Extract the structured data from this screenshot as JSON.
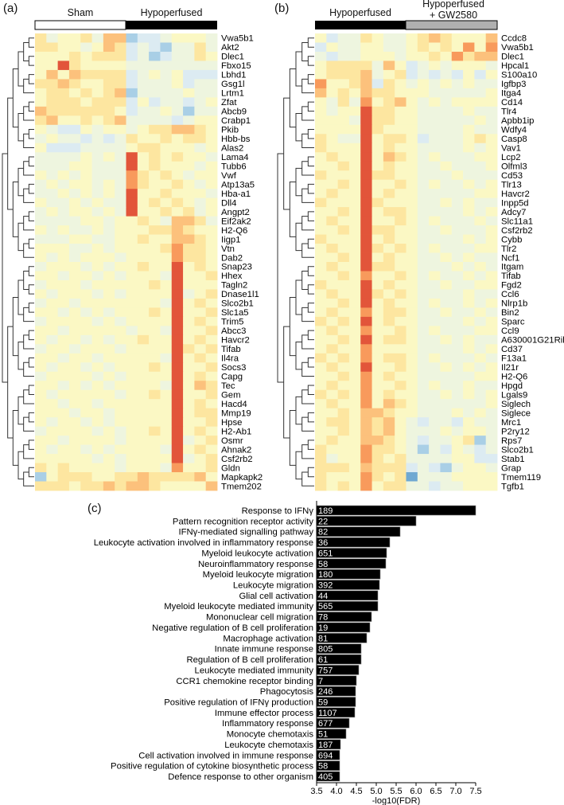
{
  "panels": {
    "a": {
      "label": "(a)",
      "groups": [
        "Sham",
        "Hypoperfused"
      ]
    },
    "b": {
      "label": "(b)",
      "groups": [
        "Hypoperfused",
        "Hypoperfused",
        "+ GW2580"
      ]
    },
    "c": {
      "label": "(c)"
    }
  },
  "colors": {
    "sham": "#ffffff",
    "hypoperfused": "#000000",
    "gw2580": "#b0b0b0",
    "scale": [
      "#6fa8d2",
      "#a9cfe6",
      "#dcebf2",
      "#eef5df",
      "#fbf8c4",
      "#fde6a0",
      "#fcc17c",
      "#f89a5c",
      "#e2553a"
    ]
  },
  "chart_data": [
    {
      "type": "heatmap",
      "title": "(a)",
      "column_groups": [
        {
          "name": "Sham",
          "n": 8
        },
        {
          "name": "Hypoperfused",
          "n": 8
        }
      ],
      "value_encoding": "digit 0-8 per sample, 4 = row mean (z-score ~0), 0 = low (blue), 8 = high (red)",
      "rows": [
        "Vwa5b1",
        "Akt2",
        "Dlec1",
        "Fbxo15",
        "Lbhd1",
        "Gsg1l",
        "Lrtm1",
        "Zfat",
        "Abcb9",
        "Crabp1",
        "Pkib",
        "Hbb-bs",
        "Alas2",
        "Lama4",
        "Tubb6",
        "Vwf",
        "Atp13a5",
        "Hba-a1",
        "Dll4",
        "Angpt2",
        "Eif2ak2",
        "H2-Q6",
        "Iigp1",
        "Vtn",
        "Dab2",
        "Snap23",
        "Hhex",
        "Tagln2",
        "Dnase1l1",
        "Slco2b1",
        "Slc1a5",
        "Trim5",
        "Abcc3",
        "Havcr2",
        "Tifab",
        "Il4ra",
        "Socs3",
        "Capg",
        "Tec",
        "Gem",
        "Hacd4",
        "Mmp19",
        "Hpse",
        "H2-Ab1",
        "Osmr",
        "Ahnak2",
        "Csf2rb2",
        "Gldn",
        "Mapkapk2",
        "Tmem202"
      ],
      "values": [
        "5344536612234443",
        "5544346523213353",
        "4445455523123354",
        "4485444433333333",
        "4646555523434222",
        "5565445523334233",
        "4554545613333433",
        "4555455524233234",
        "6555555423343133",
        "5644545633332344",
        "4322434434556654",
        "3433232354454554",
        "4222333345544434",
        "3333434384545443",
        "3334433384544434",
        "4343433375454344",
        "3434434375445434",
        "3343434384454443",
        "4334343384545434",
        "3434434384454534",
        "3333443445436653",
        "4343343444556544",
        "3334433445446654",
        "4443343444457554",
        "4343444344447554",
        "3444343445448454",
        "4434434344438445",
        "3444344444548444",
        "4344434344448345",
        "3443444444438454",
        "4434343444548445",
        "3444434344448454",
        "4434444434438445",
        "4344343445448454",
        "3443444344448545",
        "4434434444438454",
        "4344343444548445",
        "3444434344448454",
        "4434343444438465",
        "4344444344548445",
        "4434434444448454",
        "4443443444448455",
        "4344343444448445",
        "3444434344548454",
        "4434444344448345",
        "4344343444438454",
        "4444434344448345",
        "5454444344437445",
        "1455544556555564",
        "5554556566544446"
      ]
    },
    {
      "type": "heatmap",
      "title": "(b)",
      "column_groups": [
        {
          "name": "Hypoperfused",
          "n": 8
        },
        {
          "name": "Hypoperfused + GW2580",
          "n": 8
        }
      ],
      "value_encoding": "digit 0-8 per sample, 4 = row mean (z-score ~0), 0 = low (blue), 8 = high (red)",
      "rows": [
        "Ccdc8",
        "Vwa5b1",
        "Dlec1",
        "Hpcal1",
        "S100a10",
        "Igfbp3",
        "Itga4",
        "Cd14",
        "Tlr4",
        "Apbb1ip",
        "Wdfy4",
        "Casp8",
        "Vav1",
        "Lcp2",
        "Olfml3",
        "Cd53",
        "Tlr13",
        "Havcr2",
        "Inpp5d",
        "Adcy7",
        "Slc11a1",
        "Csf2rb2",
        "Cybb",
        "Tlr2",
        "Ncf1",
        "Itgam",
        "Tifab",
        "Fgd2",
        "Ccl6",
        "Nlrp1b",
        "Bin2",
        "Sparc",
        "Ccl9",
        "A630001G21Rik",
        "Cd37",
        "F13a1",
        "Il21r",
        "H2-Q6",
        "Hpgd",
        "Lgals9",
        "Siglech",
        "Siglece",
        "Mrc1",
        "P2ry12",
        "Rps7",
        "Slco2b1",
        "Stab1",
        "Grap",
        "Tmem119",
        "Tgfb1"
      ],
      "values": [
        "4233543345654446",
        "2433443345454747",
        "3233444344547566",
        "4555536423434443",
        "4555634523232424",
        "7445625434343433",
        "6454655444333334",
        "4353745643434444",
        "4344855443333433",
        "4443855443333343",
        "4444854443333433",
        "5433845542333454",
        "5444845443333434",
        "4544846543433344",
        "4454845443343334",
        "5444855443334333",
        "4454844543433434",
        "4544845443333344",
        "5444854443343433",
        "4454845543333434",
        "4544844543433343",
        "4454855443343334",
        "5444845443333434",
        "4544854543433344",
        "4454845443343433",
        "4544855443334343",
        "4454744543433434",
        "5444845443343344",
        "4544854543333433",
        "4454845443433434",
        "4544745543343343",
        "5454845443333434",
        "4544744543433344",
        "4454845543343433",
        "4544744443333434",
        "5454745543433343",
        "4544844543343434",
        "4454745443333344",
        "4544744543433433",
        "5454745443343434",
        "4544746543333334",
        "4454665443334343",
        "4554656432332433",
        "4454656433343443",
        "4544665432334513",
        "5444755431324323",
        "5344754533334422",
        "5554655523213443",
        "5444754503334444",
        "5454745533233444"
      ]
    },
    {
      "type": "bar",
      "orientation": "horizontal",
      "title": "(c)",
      "xlabel": "-log10(FDR)",
      "ylabel": "",
      "xlim": [
        3.5,
        7.5
      ],
      "xticks": [
        "3.5",
        "4.0",
        "4.5",
        "5.0",
        "5.5",
        "6.0",
        "6.5",
        "7.0",
        "7.5"
      ],
      "categories": [
        "Response to IFNγ",
        "Pattern recognition receptor activity",
        "IFNγ-mediated signalling pathway",
        "Leukocyte activation involved in inflammatory response",
        "Myeloid leukocyte activation",
        "Neuroinflammatory response",
        "Myeloid leukocyte migration",
        "Leukocyte migration",
        "Glial cell activation",
        "Myeloid leukocyte mediated immunity",
        "Mononuclear cell migration",
        "Negative regulation of B cell proliferation",
        "Macrophage activation",
        "Innate immune response",
        "Regulation of B cell proliferation",
        "Leukocyte mediated immunity",
        "CCR1 chemokine receptor binding",
        "Phagocytosis",
        "Positive regulation of IFNγ production",
        "Immune effector process",
        "Inflammatory response",
        "Monocyte chemotaxis",
        "Leukocyte chemotaxis",
        "Cell activation involved in immune response",
        "Positive regulation of cytokine biosynthetic process",
        "Defence response to other organism"
      ],
      "values": [
        7.5,
        6.0,
        5.6,
        5.34,
        5.26,
        5.24,
        5.1,
        5.08,
        5.04,
        5.04,
        4.88,
        4.84,
        4.76,
        4.62,
        4.62,
        4.56,
        4.5,
        4.48,
        4.48,
        4.46,
        4.32,
        4.24,
        4.1,
        4.08,
        4.08,
        4.08
      ],
      "gene_counts": [
        "189",
        "22",
        "82",
        "36",
        "651",
        "58",
        "180",
        "392",
        "44",
        "565",
        "78",
        "19",
        "81",
        "805",
        "61",
        "757",
        "7",
        "246",
        "59",
        "1107",
        "677",
        "51",
        "187",
        "694",
        "58",
        "405"
      ]
    }
  ]
}
